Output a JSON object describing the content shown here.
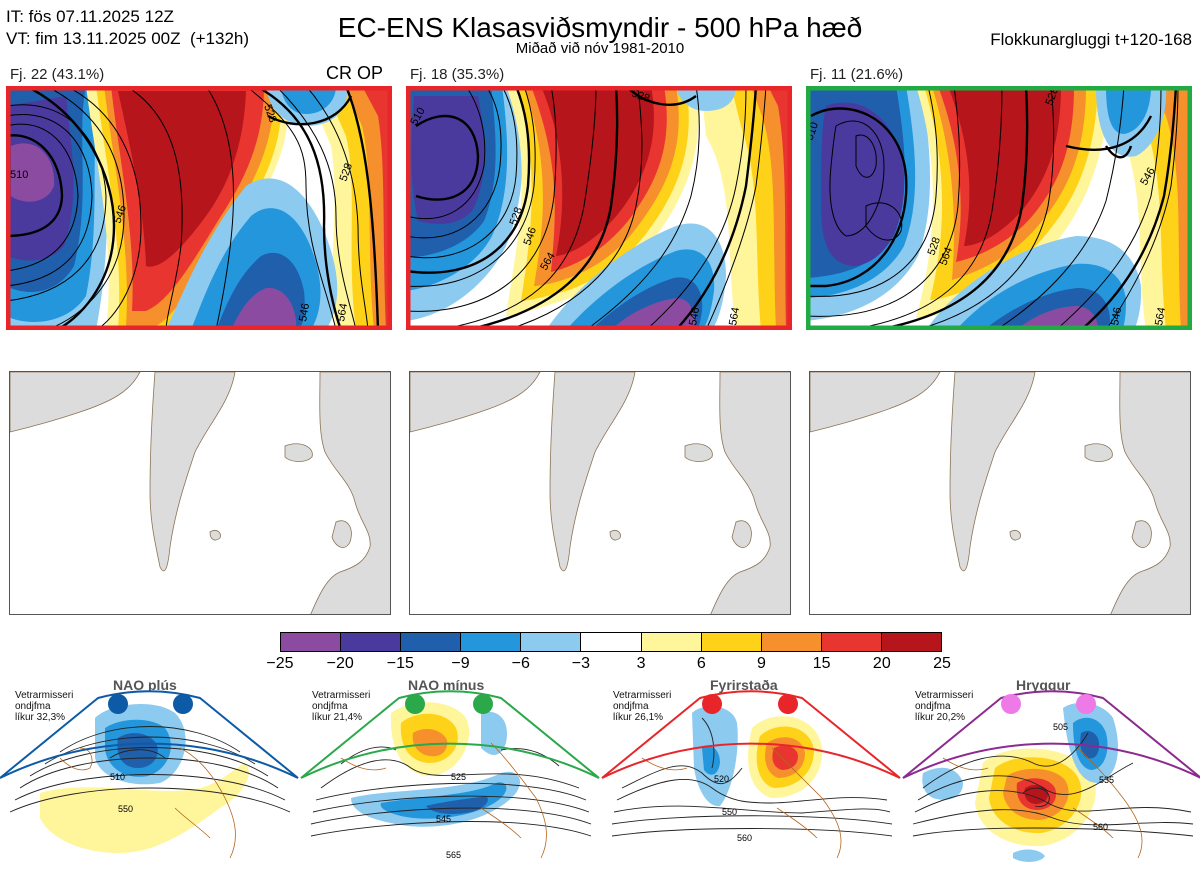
{
  "header": {
    "init_time": "IT: fös 07.11.2025 12Z",
    "valid_time": "VT: fim 13.11.2025 00Z  (+132h)",
    "title": "EC-ENS Klasasviðsmyndir - 500 hPa hæð",
    "subtitle": "Miðað við nóv 1981-2010",
    "window": "Flokkunargluggi t+120-168"
  },
  "panels": [
    {
      "label": "Fj. 22 (43.1%)",
      "tag": "CR OP",
      "border_color": "#e8262a",
      "contours": [
        "510",
        "528",
        "546",
        "528",
        "546",
        "564",
        "546"
      ]
    },
    {
      "label": "Fj. 18 (35.3%)",
      "tag": "",
      "border_color": "#e8262a",
      "contours": [
        "510",
        "528",
        "528",
        "546",
        "564",
        "546",
        "564"
      ]
    },
    {
      "label": "Fj. 11 (21.6%)",
      "tag": "",
      "border_color": "#22aa44",
      "contours": [
        "510",
        "528",
        "546",
        "546",
        "564",
        "528",
        "564"
      ]
    }
  ],
  "colorbar": {
    "colors": [
      "#8b4ba0",
      "#4a3a9e",
      "#1f5fab",
      "#2496dc",
      "#8ccaf0",
      "#ffffff",
      "#fff59a",
      "#ffd21a",
      "#f5902c",
      "#e93530",
      "#b5151b"
    ],
    "ticks": [
      "−25",
      "−20",
      "−15",
      "−9",
      "−6",
      "−3",
      "3",
      "6",
      "9",
      "15",
      "20",
      "25"
    ]
  },
  "regimes": [
    {
      "title": "NAO plús",
      "note": "Vetrarmisseri\nondjfma\nlíkur 32,3%",
      "color": "#0d5aa7",
      "dot_color": "#0d5aa7",
      "labels": [
        "510",
        "550"
      ]
    },
    {
      "title": "NAO mínus",
      "note": "Vetrarmisseri\nondjfma\nlíkur 21,4%",
      "color": "#2aa84a",
      "dot_color": "#2aa84a",
      "labels": [
        "525",
        "545",
        "565"
      ]
    },
    {
      "title": "Fyrirstaða",
      "note": "Vetrarmisseri\nondjfma\nlíkur 26,1%",
      "color": "#e8262a",
      "dot_color": "#e8262a",
      "labels": [
        "520",
        "550",
        "560"
      ]
    },
    {
      "title": "Hryggur",
      "note": "Vetrarmisseri\nondjfma\nlíkur 20,2%",
      "color": "#8b2a8f",
      "dot_color": "#ee7ae8",
      "labels": [
        "505",
        "535",
        "560"
      ]
    }
  ]
}
